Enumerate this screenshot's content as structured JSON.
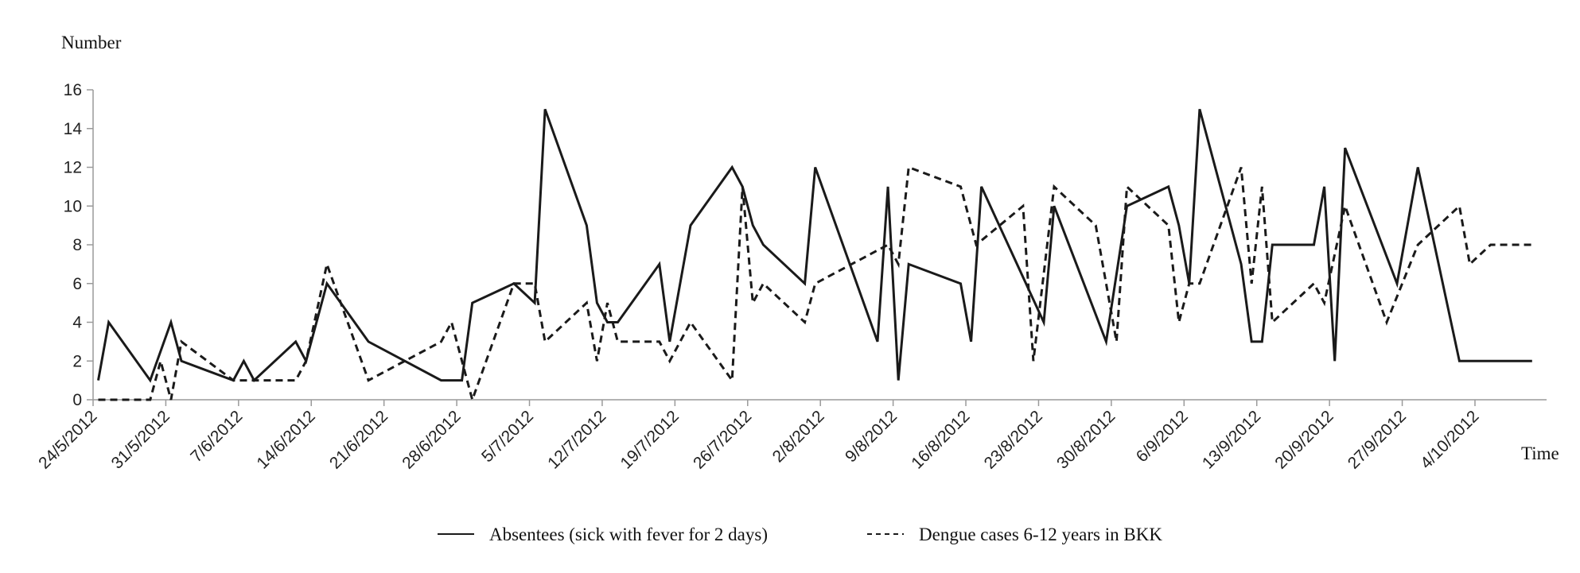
{
  "chart_data": {
    "type": "line",
    "title": "",
    "ylabel": "Number",
    "xlabel": "Time",
    "ylim": [
      0,
      16
    ],
    "yticks": [
      0,
      2,
      4,
      6,
      8,
      10,
      12,
      14,
      16
    ],
    "x_unit": "days since 24/5/2012",
    "xlim": [
      0,
      140
    ],
    "xticks": [
      {
        "day": 0,
        "label": "24/5/2012"
      },
      {
        "day": 7,
        "label": "31/5/2012"
      },
      {
        "day": 14,
        "label": "7/6/2012"
      },
      {
        "day": 21,
        "label": "14/6/2012"
      },
      {
        "day": 28,
        "label": "21/6/2012"
      },
      {
        "day": 35,
        "label": "28/6/2012"
      },
      {
        "day": 42,
        "label": "5/7/2012"
      },
      {
        "day": 49,
        "label": "12/7/2012"
      },
      {
        "day": 56,
        "label": "19/7/2012"
      },
      {
        "day": 63,
        "label": "26/7/2012"
      },
      {
        "day": 70,
        "label": "2/8/2012"
      },
      {
        "day": 77,
        "label": "9/8/2012"
      },
      {
        "day": 84,
        "label": "16/8/2012"
      },
      {
        "day": 91,
        "label": "23/8/2012"
      },
      {
        "day": 98,
        "label": "30/8/2012"
      },
      {
        "day": 105,
        "label": "6/9/2012"
      },
      {
        "day": 112,
        "label": "13/9/2012"
      },
      {
        "day": 119,
        "label": "20/9/2012"
      },
      {
        "day": 126,
        "label": "27/9/2012"
      },
      {
        "day": 133,
        "label": "4/10/2012"
      }
    ],
    "grid": false,
    "legend_position": "bottom",
    "series": [
      {
        "name": "Absentees (sick with fever for 2 days)",
        "style": "solid",
        "color": "#1a1a1a",
        "points": [
          [
            0,
            1
          ],
          [
            1,
            4
          ],
          [
            5,
            1
          ],
          [
            7,
            4
          ],
          [
            8,
            2
          ],
          [
            13,
            1
          ],
          [
            14,
            2
          ],
          [
            15,
            1
          ],
          [
            19,
            3
          ],
          [
            20,
            2
          ],
          [
            22,
            6
          ],
          [
            26,
            3
          ],
          [
            33,
            1
          ],
          [
            35,
            1
          ],
          [
            36,
            5
          ],
          [
            40,
            6
          ],
          [
            42,
            5
          ],
          [
            43,
            15
          ],
          [
            47,
            9
          ],
          [
            48,
            5
          ],
          [
            49,
            4
          ],
          [
            50,
            4
          ],
          [
            54,
            7
          ],
          [
            55,
            3
          ],
          [
            57,
            9
          ],
          [
            61,
            12
          ],
          [
            62,
            11
          ],
          [
            63,
            9
          ],
          [
            64,
            8
          ],
          [
            68,
            6
          ],
          [
            69,
            12
          ],
          [
            75,
            3
          ],
          [
            76,
            11
          ],
          [
            77,
            1
          ],
          [
            78,
            7
          ],
          [
            83,
            6
          ],
          [
            84,
            3
          ],
          [
            85,
            11
          ],
          [
            91,
            4
          ],
          [
            92,
            10
          ],
          [
            97,
            3
          ],
          [
            99,
            10
          ],
          [
            103,
            11
          ],
          [
            104,
            9
          ],
          [
            105,
            6
          ],
          [
            106,
            15
          ],
          [
            110,
            7
          ],
          [
            111,
            3
          ],
          [
            112,
            3
          ],
          [
            113,
            8
          ],
          [
            117,
            8
          ],
          [
            118,
            11
          ],
          [
            119,
            2
          ],
          [
            120,
            13
          ],
          [
            125,
            6
          ],
          [
            127,
            12
          ],
          [
            131,
            2
          ],
          [
            138,
            2
          ]
        ]
      },
      {
        "name": "Dengue cases 6-12 years in BKK",
        "style": "dashed",
        "color": "#1a1a1a",
        "points": [
          [
            0,
            0
          ],
          [
            5,
            0
          ],
          [
            6,
            2
          ],
          [
            7,
            0
          ],
          [
            8,
            3
          ],
          [
            13,
            1
          ],
          [
            15,
            1
          ],
          [
            19,
            1
          ],
          [
            20,
            2
          ],
          [
            22,
            7
          ],
          [
            26,
            1
          ],
          [
            33,
            3
          ],
          [
            34,
            4
          ],
          [
            36,
            0
          ],
          [
            40,
            6
          ],
          [
            42,
            6
          ],
          [
            43,
            3
          ],
          [
            47,
            5
          ],
          [
            48,
            2
          ],
          [
            49,
            5
          ],
          [
            50,
            3
          ],
          [
            54,
            3
          ],
          [
            55,
            2
          ],
          [
            57,
            4
          ],
          [
            61,
            1
          ],
          [
            62,
            11
          ],
          [
            63,
            5
          ],
          [
            64,
            6
          ],
          [
            68,
            4
          ],
          [
            69,
            6
          ],
          [
            76,
            8
          ],
          [
            77,
            7
          ],
          [
            78,
            12
          ],
          [
            83,
            11
          ],
          [
            84.5,
            8
          ],
          [
            89,
            10
          ],
          [
            90,
            2
          ],
          [
            92,
            11
          ],
          [
            96,
            9
          ],
          [
            98,
            3
          ],
          [
            99,
            11
          ],
          [
            103,
            9
          ],
          [
            104,
            4
          ],
          [
            105,
            6
          ],
          [
            106,
            6
          ],
          [
            110,
            12
          ],
          [
            111,
            6
          ],
          [
            112,
            11
          ],
          [
            113,
            4
          ],
          [
            117,
            6
          ],
          [
            118,
            5
          ],
          [
            120,
            10
          ],
          [
            124,
            4
          ],
          [
            127,
            8
          ],
          [
            131,
            10
          ],
          [
            132,
            7
          ],
          [
            134,
            8
          ],
          [
            138,
            8
          ]
        ]
      }
    ]
  }
}
